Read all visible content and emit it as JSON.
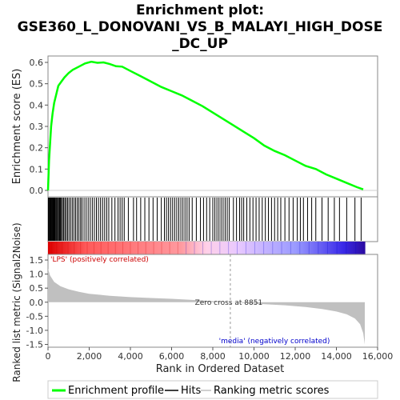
{
  "chart_data": {
    "type": "line",
    "title_line1": "Enrichment plot:",
    "title_line2": "GSE360_L_DONOVANI_VS_B_MALAYI_HIGH_DOSE",
    "title_line3": "_DC_UP",
    "es_panel": {
      "ylabel": "Enrichment score (ES)",
      "ylim": [
        -0.03,
        0.63
      ],
      "yticks": [
        "0.0",
        "0.1",
        "0.2",
        "0.3",
        "0.4",
        "0.5",
        "0.6"
      ],
      "ytick_values": [
        0.0,
        0.1,
        0.2,
        0.3,
        0.4,
        0.5,
        0.6
      ],
      "series_color": "#00ff00",
      "points": [
        [
          0,
          0.0
        ],
        [
          50,
          0.14
        ],
        [
          100,
          0.22
        ],
        [
          150,
          0.3
        ],
        [
          220,
          0.36
        ],
        [
          300,
          0.41
        ],
        [
          400,
          0.45
        ],
        [
          500,
          0.49
        ],
        [
          650,
          0.51
        ],
        [
          800,
          0.53
        ],
        [
          1000,
          0.55
        ],
        [
          1200,
          0.565
        ],
        [
          1500,
          0.58
        ],
        [
          1800,
          0.595
        ],
        [
          2100,
          0.603
        ],
        [
          2400,
          0.598
        ],
        [
          2700,
          0.6
        ],
        [
          3000,
          0.592
        ],
        [
          3300,
          0.582
        ],
        [
          3600,
          0.58
        ],
        [
          4000,
          0.56
        ],
        [
          4500,
          0.535
        ],
        [
          5000,
          0.51
        ],
        [
          5500,
          0.485
        ],
        [
          6000,
          0.465
        ],
        [
          6500,
          0.445
        ],
        [
          7000,
          0.42
        ],
        [
          7500,
          0.395
        ],
        [
          8000,
          0.365
        ],
        [
          8500,
          0.335
        ],
        [
          9000,
          0.305
        ],
        [
          9500,
          0.275
        ],
        [
          10000,
          0.245
        ],
        [
          10500,
          0.21
        ],
        [
          11000,
          0.185
        ],
        [
          11500,
          0.165
        ],
        [
          12000,
          0.14
        ],
        [
          12500,
          0.115
        ],
        [
          13000,
          0.1
        ],
        [
          13500,
          0.075
        ],
        [
          14000,
          0.055
        ],
        [
          14500,
          0.035
        ],
        [
          15000,
          0.015
        ],
        [
          15300,
          0.005
        ]
      ]
    },
    "hits": {
      "stroke_color": "#000000",
      "ranks": [
        20,
        60,
        90,
        120,
        150,
        180,
        210,
        240,
        270,
        300,
        330,
        360,
        400,
        440,
        470,
        520,
        560,
        600,
        650,
        700,
        760,
        820,
        880,
        950,
        1020,
        1100,
        1180,
        1260,
        1340,
        1420,
        1500,
        1580,
        1650,
        1750,
        1850,
        1950,
        2050,
        2150,
        2250,
        2350,
        2450,
        2550,
        2650,
        2750,
        2850,
        2950,
        3100,
        3250,
        3400,
        3500,
        3600,
        3700,
        3900,
        4150,
        4300,
        4500,
        4700,
        4900,
        5100,
        5300,
        5500,
        5650,
        5750,
        5850,
        5950,
        6050,
        6150,
        6250,
        6350,
        6450,
        6550,
        6650,
        6750,
        6850,
        7000,
        7200,
        7400,
        7550,
        7700,
        7850,
        8000,
        8100,
        8200,
        8300,
        8400,
        8500,
        8600,
        8700,
        8800,
        9000,
        9150,
        9300,
        9400,
        9500,
        9650,
        9800,
        9950,
        10100,
        10250,
        10400,
        10550,
        10700,
        10850,
        11000,
        11150,
        11300,
        11500,
        11700,
        11900,
        12100,
        12250,
        12400,
        12600,
        12800,
        13000,
        13300,
        13600,
        13900,
        14150,
        14500,
        14900,
        15200
      ]
    },
    "heatmap": {
      "colors_from_to": [
        "#ff0000",
        "#ffffff",
        "#0000ff"
      ]
    },
    "metric_panel": {
      "ylabel": "Ranked list metric (Signal2Noise)",
      "xlabel": "Rank in Ordered Dataset",
      "ylim": [
        -1.6,
        1.7
      ],
      "yticks": [
        "1.5",
        "1.0",
        "0.5",
        "0.0",
        "-0.5",
        "-1.0",
        "-1.5"
      ],
      "ytick_values": [
        1.5,
        1.0,
        0.5,
        0.0,
        -0.5,
        -1.0,
        -1.5
      ],
      "fill_color": "#c0c0c0",
      "metric_points": [
        [
          0,
          1.2
        ],
        [
          100,
          0.95
        ],
        [
          300,
          0.72
        ],
        [
          600,
          0.57
        ],
        [
          1000,
          0.46
        ],
        [
          1500,
          0.37
        ],
        [
          2000,
          0.3
        ],
        [
          3000,
          0.23
        ],
        [
          4000,
          0.18
        ],
        [
          5000,
          0.15
        ],
        [
          6000,
          0.12
        ],
        [
          7000,
          0.08
        ],
        [
          8000,
          0.04
        ],
        [
          8851,
          0.0
        ],
        [
          9500,
          -0.03
        ],
        [
          10500,
          -0.07
        ],
        [
          11500,
          -0.11
        ],
        [
          12500,
          -0.17
        ],
        [
          13300,
          -0.24
        ],
        [
          14000,
          -0.33
        ],
        [
          14500,
          -0.43
        ],
        [
          14900,
          -0.58
        ],
        [
          15150,
          -0.78
        ],
        [
          15300,
          -1.1
        ],
        [
          15380,
          -1.5
        ]
      ],
      "zero_cross_label": "Zero cross at 8851",
      "zero_cross_rank": 8851,
      "pos_label": "'LPS' (positively correlated)",
      "neg_label": "'media' (negatively correlated)",
      "pos_color": "#cc0000",
      "neg_color": "#0000cc"
    },
    "x_axis": {
      "xlim": [
        0,
        16000
      ],
      "max_rank": 15400,
      "xticks": [
        "0",
        "2,000",
        "4,000",
        "6,000",
        "8,000",
        "10,000",
        "12,000",
        "14,000",
        "16,000"
      ],
      "xtick_values": [
        0,
        2000,
        4000,
        6000,
        8000,
        10000,
        12000,
        14000,
        16000
      ]
    },
    "legend": {
      "items": [
        {
          "label": "Enrichment profile",
          "color": "#00ff00"
        },
        {
          "label": "Hits",
          "color": "#000000"
        },
        {
          "label": "Ranking metric scores",
          "color": "#c0c0c0"
        }
      ]
    }
  }
}
